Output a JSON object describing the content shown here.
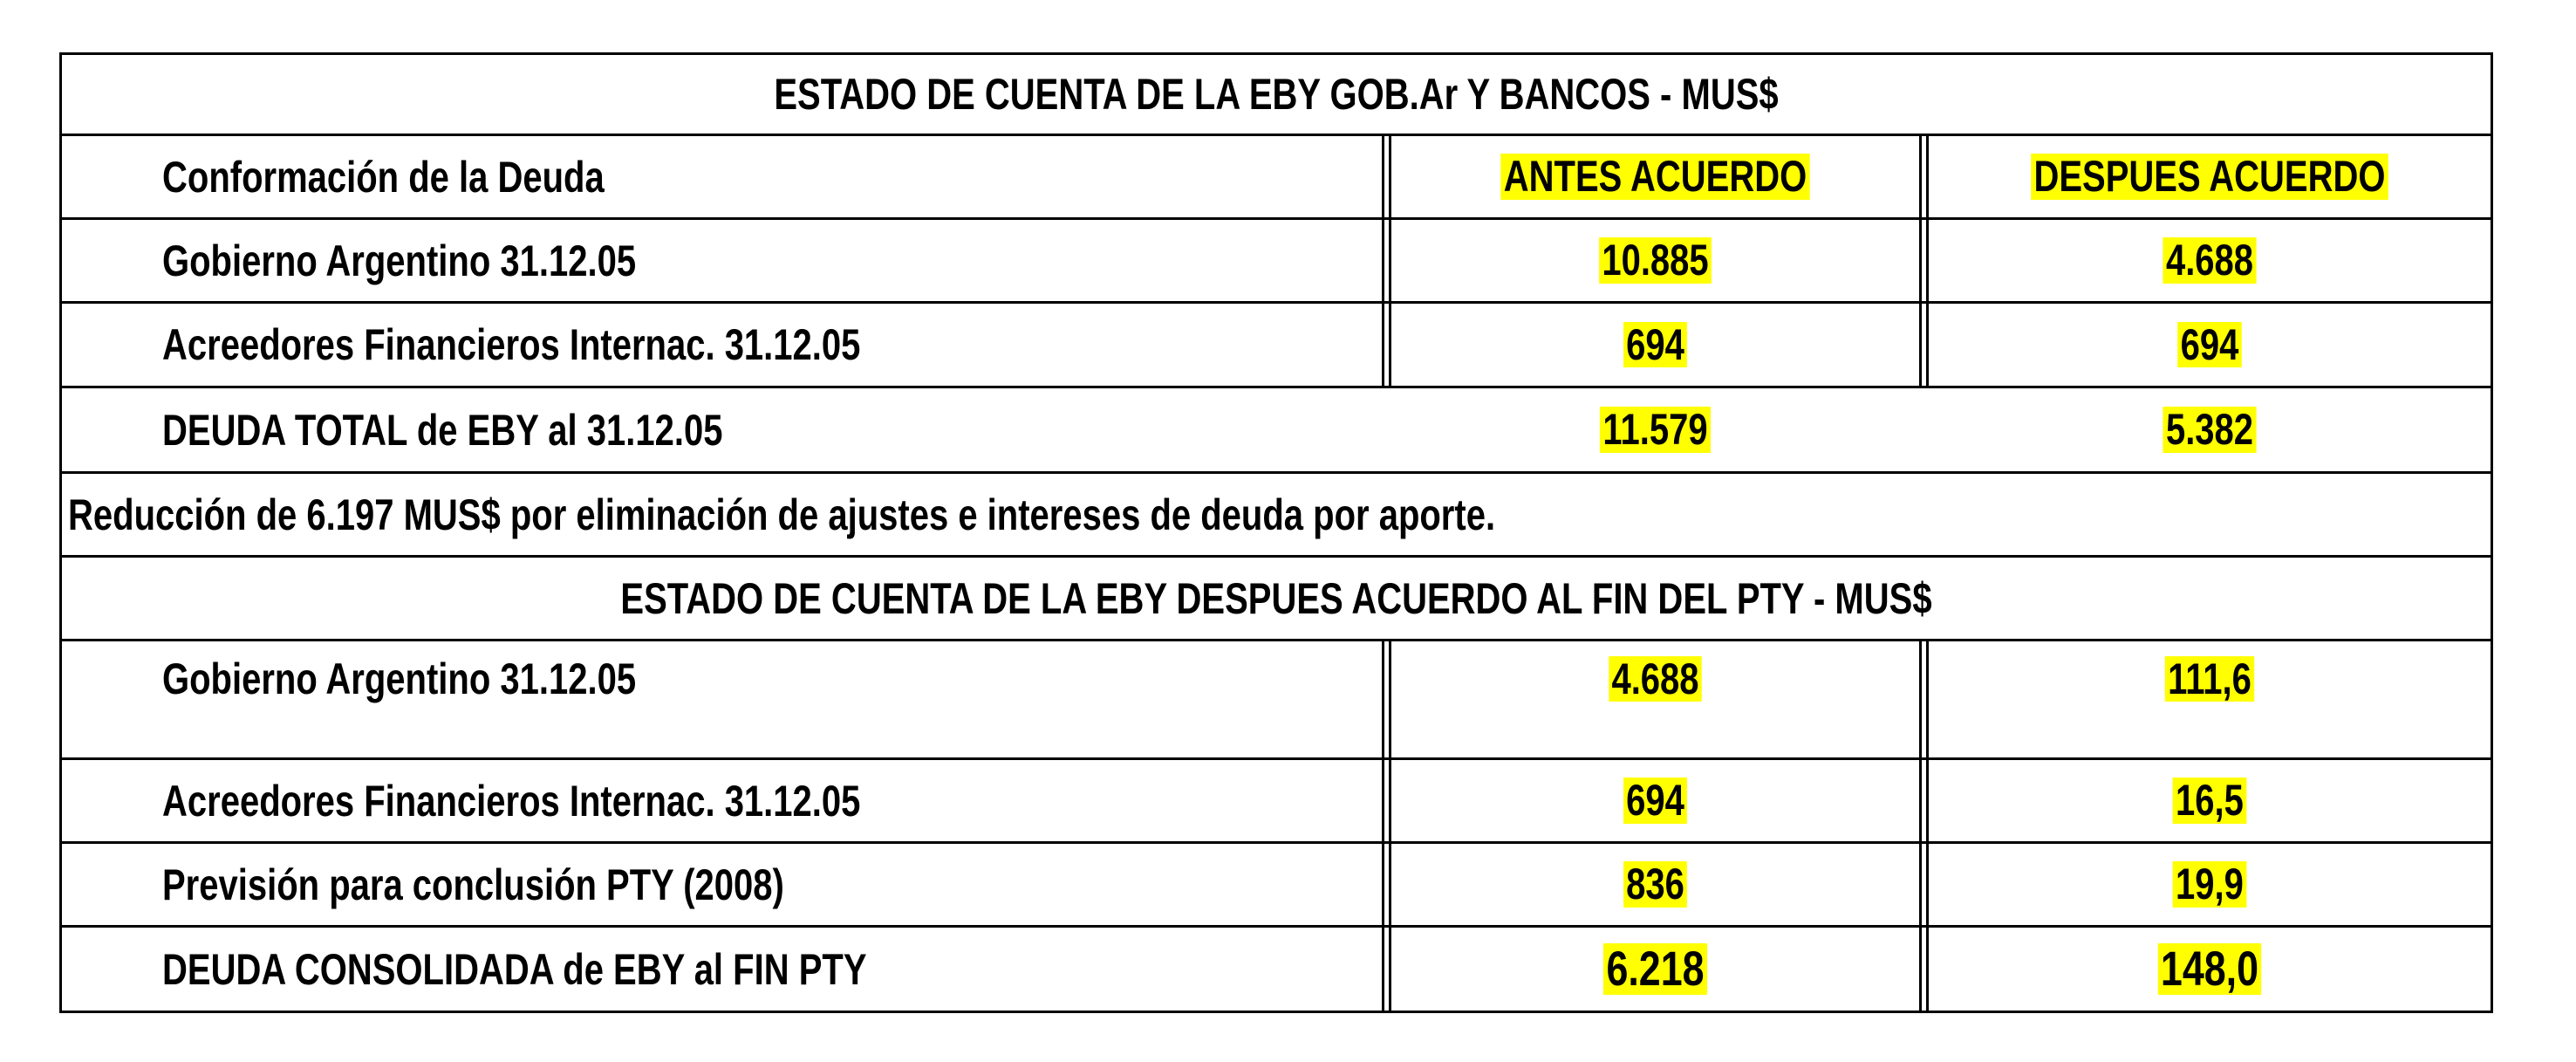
{
  "table1": {
    "title": "ESTADO DE CUENTA DE LA EBY GOB.Ar Y BANCOS -  MUS$",
    "header": {
      "label": "Conformación de la Deuda",
      "col1": "ANTES ACUERDO",
      "col2": "DESPUES  ACUERDO"
    },
    "rows": [
      {
        "label": "Gobierno Argentino 31.12.05",
        "v1": "10.885",
        "v2": "4.688"
      },
      {
        "label": "Acreedores Financieros Internac. 31.12.05",
        "v1": "694",
        "v2": "694"
      },
      {
        "label": "DEUDA TOTAL de EBY al 31.12.05",
        "v1": "11.579",
        "v2": "5.382"
      }
    ]
  },
  "note": "Reducción de 6.197 MUS$ por eliminación de ajustes e intereses de deuda por aporte.",
  "table2": {
    "title": "ESTADO DE CUENTA DE LA EBY DESPUES ACUERDO AL FIN DEL PTY  -  MUS$",
    "rows": [
      {
        "label": "Gobierno Argentino 31.12.05",
        "v1": "4.688",
        "v2": "111,6"
      },
      {
        "label": "Acreedores Financieros Internac. 31.12.05",
        "v1": "694",
        "v2": "16,5"
      },
      {
        "label": "Previsión para conclusión PTY  (2008)",
        "v1": "836",
        "v2": "19,9"
      },
      {
        "label": "DEUDA CONSOLIDADA  de EBY al FIN PTY",
        "v1": "6.218",
        "v2": "148,0"
      }
    ]
  },
  "colors": {
    "highlight": "#ffff00",
    "border": "#000000"
  }
}
